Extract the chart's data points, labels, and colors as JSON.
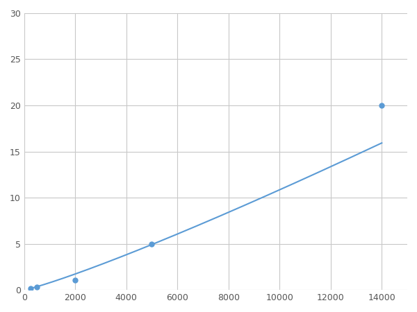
{
  "x_points": [
    246,
    500,
    2000,
    5000,
    14000
  ],
  "y_points": [
    0.2,
    0.35,
    1.1,
    5.0,
    20.0
  ],
  "line_color": "#5b9bd5",
  "marker_color": "#5b9bd5",
  "marker_size": 5,
  "xlim": [
    0,
    15000
  ],
  "ylim": [
    0,
    30
  ],
  "xticks": [
    0,
    2000,
    4000,
    6000,
    8000,
    10000,
    12000,
    14000
  ],
  "yticks": [
    0,
    5,
    10,
    15,
    20,
    25,
    30
  ],
  "grid_color": "#c8c8c8",
  "background_color": "#ffffff",
  "line_width": 1.5,
  "figsize": [
    6.0,
    4.5
  ],
  "dpi": 100
}
